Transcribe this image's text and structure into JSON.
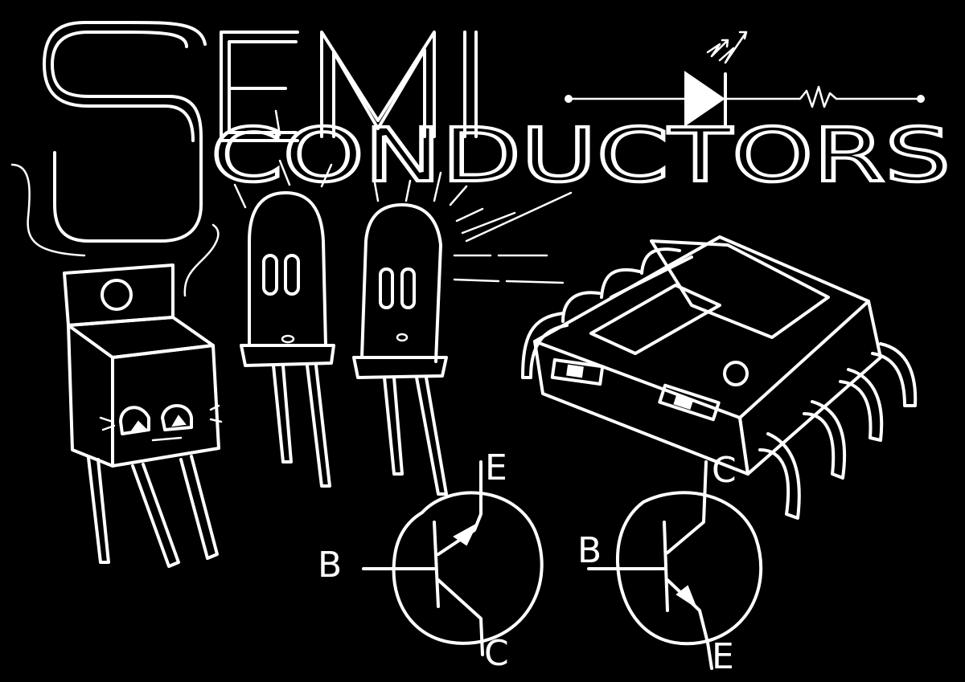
{
  "title": {
    "line1": "SEMI",
    "line2": "CONDUCTORS"
  },
  "pnp_transistor": {
    "emitter": "E",
    "base": "B",
    "collector": "C"
  },
  "npn_transistor": {
    "collector": "C",
    "base": "B",
    "emitter": "E"
  },
  "icons": {
    "led_symbol": "led-schematic-icon",
    "resistor_symbol": "resistor-schematic-icon",
    "voltage_regulator": "voltage-regulator-icon",
    "led_left": "led-component-icon",
    "led_right": "led-component-icon",
    "ic_chip": "ic-chip-icon"
  },
  "colors": {
    "background": "#000000",
    "line": "#ffffff"
  }
}
